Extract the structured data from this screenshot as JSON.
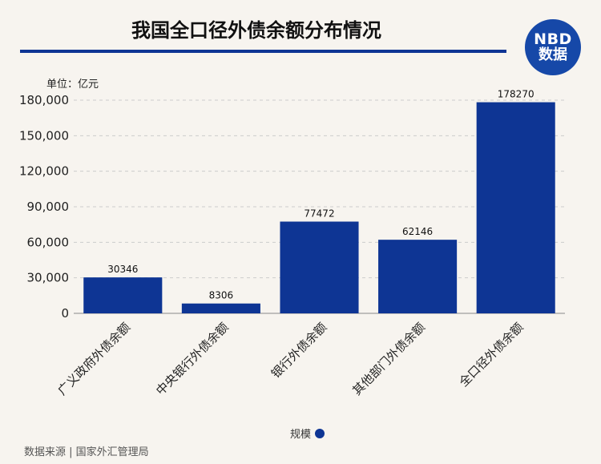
{
  "header": {
    "title": "我国全口径外债余额分布情况",
    "logo_line1": "NBD",
    "logo_line2": "数据"
  },
  "unit_label": "单位：亿元",
  "legend_label": "规模",
  "source_text": "数据来源 | 国家外汇管理局",
  "colors": {
    "bar": "#0e3594",
    "grid": "#cccccc"
  },
  "chart_data": {
    "type": "bar",
    "title": "我国全口径外债余额分布情况",
    "ylabel": "单位：亿元",
    "xlabel": "",
    "ylim": [
      0,
      180000
    ],
    "yticks": [
      0,
      30000,
      60000,
      90000,
      120000,
      150000,
      180000
    ],
    "ytick_labels": [
      "0",
      "30,000",
      "60,000",
      "90,000",
      "120,000",
      "150,000",
      "180,000"
    ],
    "categories": [
      "广义政府外债余额",
      "中央银行外债余额",
      "银行外债余额",
      "其他部门外债余额",
      "全口径外债余额"
    ],
    "series": [
      {
        "name": "规模",
        "values": [
          30346,
          8306,
          77472,
          62146,
          178270
        ]
      }
    ],
    "grid": true,
    "legend_position": "bottom"
  }
}
